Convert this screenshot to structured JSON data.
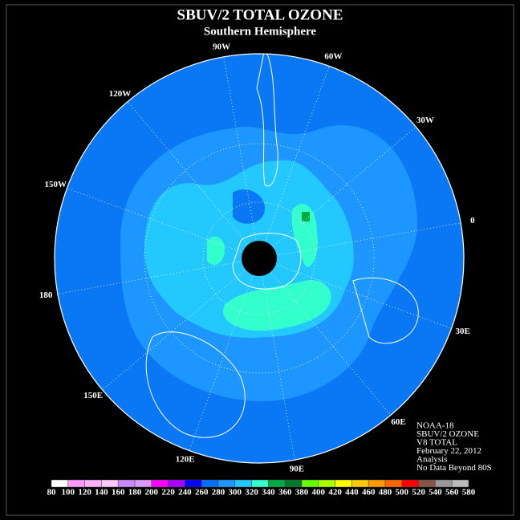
{
  "header": {
    "title": "SBUV/2 TOTAL OZONE",
    "subtitle": "Southern Hemisphere"
  },
  "map": {
    "longitude_labels": [
      "90W",
      "60W",
      "30W",
      "0",
      "30E",
      "60E",
      "90E",
      "120E",
      "150E",
      "180",
      "150W",
      "120W"
    ]
  },
  "info": [
    "NOAA-18",
    "SBUV/2 OZONE",
    "V8 TOTAL",
    "February 22, 2012",
    "Analysis",
    "No Data Beyond 80S"
  ],
  "colorbar": {
    "labels": [
      80,
      100,
      120,
      140,
      160,
      180,
      200,
      220,
      240,
      260,
      280,
      300,
      320,
      340,
      360,
      380,
      400,
      420,
      440,
      460,
      480,
      500,
      520,
      540,
      560,
      580
    ],
    "colors": [
      "#ffffff",
      "#ff99ff",
      "#ffb0ff",
      "#ffc8ff",
      "#cc88ff",
      "#dd99ff",
      "#ff00ff",
      "#aa00ff",
      "#0000ff",
      "#0070ff",
      "#1e96ff",
      "#22c8ff",
      "#33ffcc",
      "#00aa44",
      "#007a2a",
      "#66ff00",
      "#aaff00",
      "#ffff00",
      "#ffcc00",
      "#ff9900",
      "#ff6600",
      "#ff0000",
      "#885544",
      "#999999",
      "#bbbbbb"
    ]
  }
}
